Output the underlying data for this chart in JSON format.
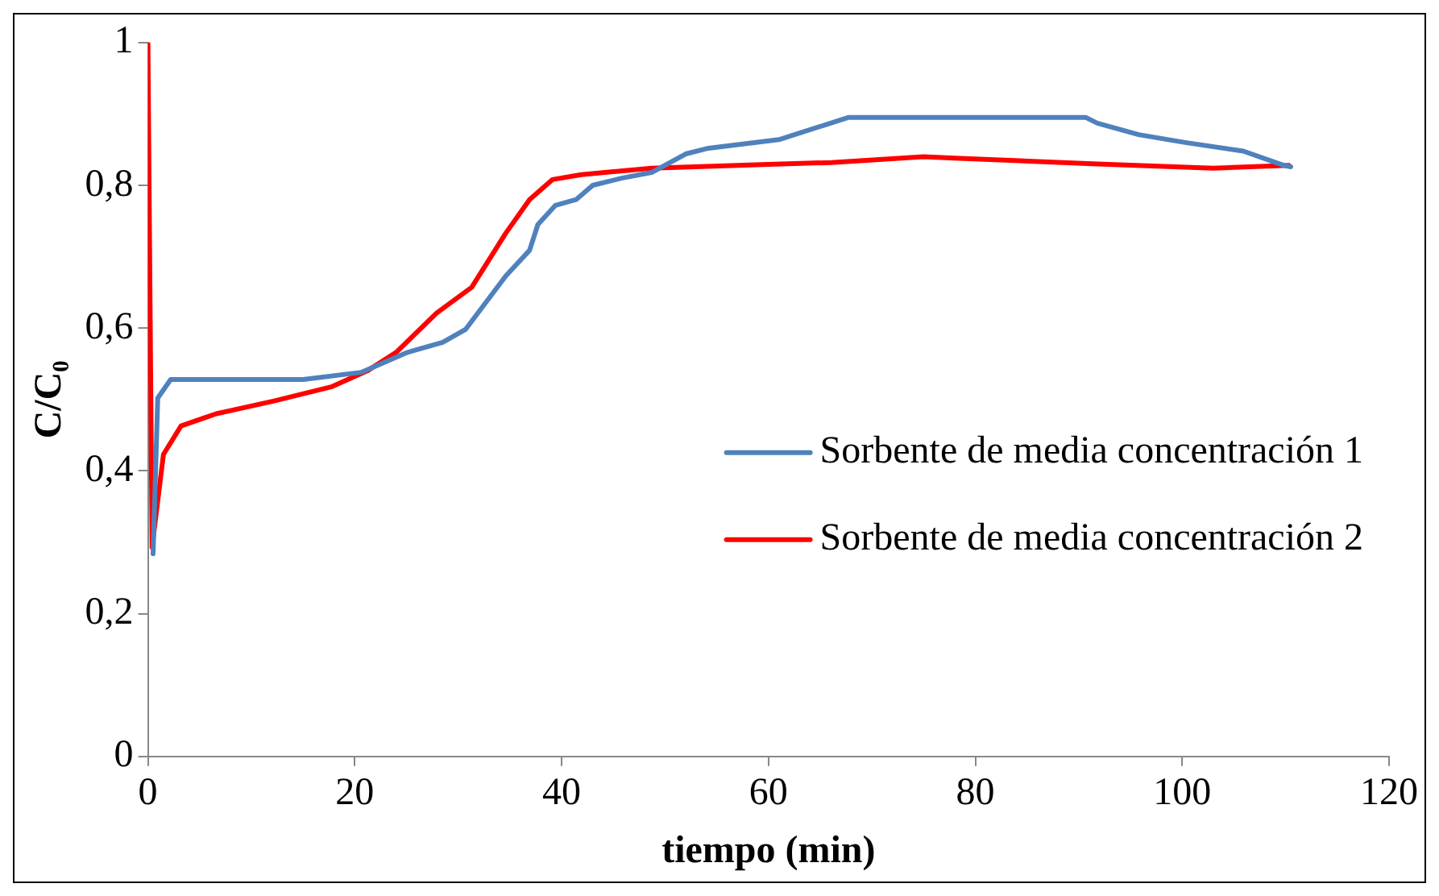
{
  "chart_data": {
    "type": "line",
    "xlabel": "tiempo (min)",
    "ylabel": "C/C₀",
    "xlim": [
      0,
      120
    ],
    "xticks": [
      0,
      20,
      40,
      60,
      80,
      100,
      120
    ],
    "ylim": [
      0,
      1
    ],
    "yticks": [
      0,
      {
        "value": 0.2,
        "label": "0,2"
      },
      {
        "value": 0.4,
        "label": "0,4"
      },
      {
        "value": 0.6,
        "label": "0,6"
      },
      {
        "value": 0.8,
        "label": "0,8"
      },
      1
    ],
    "grid": false,
    "legend": "right",
    "marker": "none",
    "line_style": "solid",
    "series": [
      {
        "name": "Sorbente de media concentración 1",
        "color": "#4f81bd",
        "x": [
          0.5,
          0.95,
          2.2,
          15,
          20.6,
          25.1,
          28.5,
          30.7,
          34.6,
          36.9,
          37.7,
          39.4,
          41.4,
          43,
          45.8,
          48.7,
          52,
          54.2,
          61,
          67.7,
          90.7,
          91.8,
          95.8,
          100.3,
          105.9,
          109.8,
          110.5
        ],
        "values": [
          0.284,
          0.502,
          0.528,
          0.528,
          0.538,
          0.566,
          0.58,
          0.598,
          0.673,
          0.709,
          0.745,
          0.772,
          0.78,
          0.8,
          0.81,
          0.818,
          0.844,
          0.852,
          0.864,
          0.895,
          0.895,
          0.887,
          0.871,
          0.86,
          0.848,
          0.828,
          0.826
        ]
      },
      {
        "name": "Sorbente de media concentración 2",
        "color": "#ff0000",
        "x": [
          0,
          0.4,
          1.5,
          3.2,
          6.6,
          12.2,
          17.8,
          21.2,
          24,
          27.9,
          31.3,
          34.6,
          36.9,
          39.1,
          41.9,
          48.7,
          59.4,
          66.1,
          75,
          78,
          91.8,
          103,
          110.3
        ],
        "values": [
          1,
          0.293,
          0.423,
          0.463,
          0.48,
          0.498,
          0.518,
          0.54,
          0.566,
          0.621,
          0.657,
          0.733,
          0.78,
          0.808,
          0.815,
          0.824,
          0.829,
          0.832,
          0.84,
          0.838,
          0.83,
          0.824,
          0.828
        ]
      }
    ]
  }
}
